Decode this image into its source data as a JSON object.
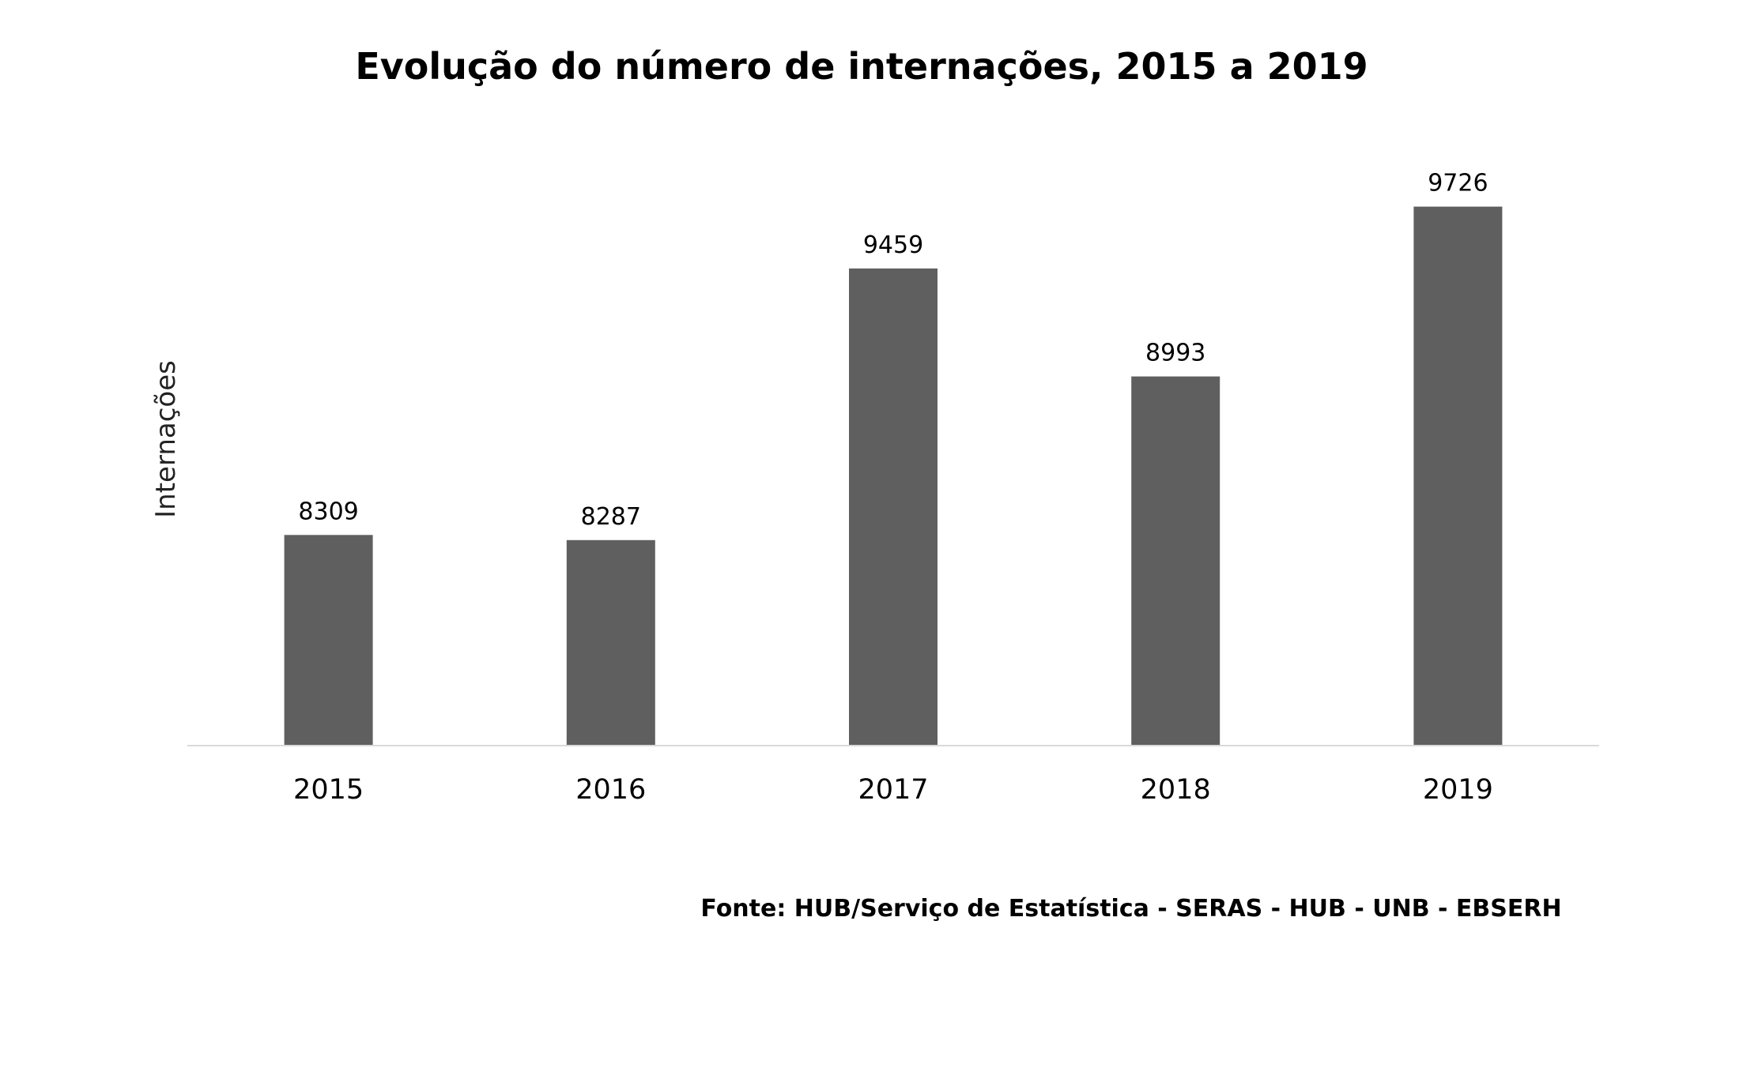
{
  "chart_data": {
    "type": "bar",
    "title": "Evolução do número de internações, 2015 a 2019",
    "ylabel": "Internações",
    "xlabel": "",
    "categories": [
      "2015",
      "2016",
      "2017",
      "2018",
      "2019"
    ],
    "values": [
      8309,
      8287,
      9459,
      8993,
      9726
    ],
    "ylim": [
      7400,
      10000
    ],
    "grid": false,
    "legend": "none",
    "bar_color": "#5f5f5f",
    "axis_color": "#d9d9d9",
    "source": "Fonte: HUB/Serviço de Estatística - SERAS - HUB - UNB - EBSERH"
  }
}
